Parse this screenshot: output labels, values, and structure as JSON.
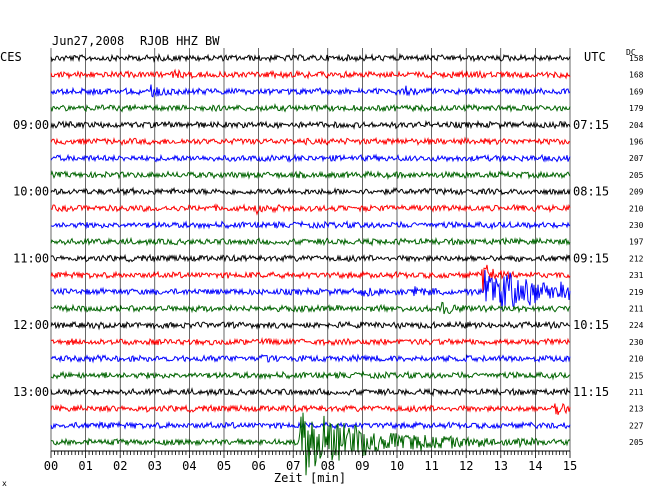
{
  "header": {
    "date": "Jun27,2008",
    "station": "RJOB HHZ BW",
    "left_tz": "CES",
    "right_tz": "UTC",
    "dc_label": "DC"
  },
  "chart_data": {
    "type": "seismogram-helicorder",
    "xlabel": "Zeit [min]",
    "x_range": [
      0,
      15
    ],
    "x_ticks": [
      "00",
      "01",
      "02",
      "03",
      "04",
      "05",
      "06",
      "07",
      "08",
      "09",
      "10",
      "11",
      "12",
      "13",
      "14",
      "15"
    ],
    "trace_colors": [
      "#000000",
      "#ff0000",
      "#0000ff",
      "#006400"
    ],
    "left_hour_labels": [
      {
        "row": 4,
        "label": "09:00"
      },
      {
        "row": 8,
        "label": "10:00"
      },
      {
        "row": 12,
        "label": "11:00"
      },
      {
        "row": 16,
        "label": "12:00"
      },
      {
        "row": 20,
        "label": "13:00"
      }
    ],
    "right_hour_labels": [
      {
        "row": 4,
        "label": "07:15"
      },
      {
        "row": 8,
        "label": "08:15"
      },
      {
        "row": 12,
        "label": "09:15"
      },
      {
        "row": 16,
        "label": "10:15"
      },
      {
        "row": 20,
        "label": "11:15"
      }
    ],
    "dc_offsets": [
      158,
      168,
      169,
      179,
      204,
      196,
      207,
      205,
      209,
      210,
      230,
      197,
      212,
      231,
      219,
      211,
      224,
      230,
      210,
      215,
      211,
      213,
      227,
      205
    ],
    "events": [
      {
        "row": 1,
        "minute": 3.6,
        "amp": 3
      },
      {
        "row": 2,
        "minute": 2.9,
        "amp": 6
      },
      {
        "row": 2,
        "minute": 10.2,
        "amp": 5
      },
      {
        "row": 9,
        "minute": 5.9,
        "amp": 4
      },
      {
        "row": 13,
        "minute": 12.5,
        "amp": 18
      },
      {
        "row": 14,
        "minute": 12.55,
        "amp": 30
      },
      {
        "row": 14,
        "minute": 9.0,
        "amp": 5
      },
      {
        "row": 14,
        "minute": 10.5,
        "amp": 5
      },
      {
        "row": 15,
        "minute": 11.3,
        "amp": 8
      },
      {
        "row": 18,
        "minute": 6.1,
        "amp": 4
      },
      {
        "row": 21,
        "minute": 14.6,
        "amp": 14
      },
      {
        "row": 23,
        "minute": 7.2,
        "amp": 40
      }
    ],
    "footer_mark": "x"
  }
}
